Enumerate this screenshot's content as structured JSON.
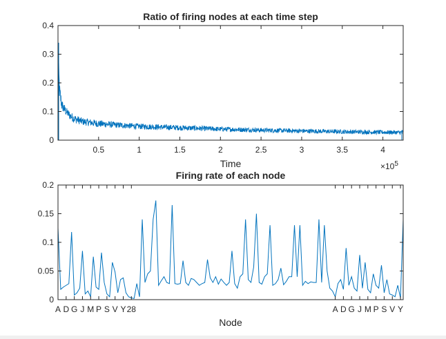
{
  "chart_data": [
    {
      "type": "line",
      "title": "Ratio of firing nodes at each time step",
      "xlabel": "Time",
      "ylabel": "",
      "x_exponent_label": "×10",
      "x_exponent_power": "5",
      "xlim": [
        0,
        4.25
      ],
      "ylim": [
        0,
        0.4
      ],
      "xticks": [
        0.5,
        1,
        1.5,
        2,
        2.5,
        3,
        3.5,
        4
      ],
      "xtick_labels": [
        "0.5",
        "1",
        "1.5",
        "2",
        "2.5",
        "3",
        "3.5",
        "4"
      ],
      "yticks": [
        0,
        0.1,
        0.2,
        0.3,
        0.4
      ],
      "ytick_labels": [
        "0",
        "0.1",
        "0.2",
        "0.3",
        "0.4"
      ],
      "envelope": {
        "x": [
          0.0,
          0.02,
          0.05,
          0.1,
          0.15,
          0.2,
          0.3,
          0.5,
          0.75,
          1.0,
          1.5,
          2.0,
          2.5,
          3.0,
          3.5,
          4.0,
          4.25
        ],
        "mean": [
          0.3,
          0.17,
          0.12,
          0.1,
          0.085,
          0.075,
          0.065,
          0.058,
          0.053,
          0.048,
          0.043,
          0.038,
          0.034,
          0.031,
          0.029,
          0.027,
          0.026
        ],
        "upper": [
          0.33,
          0.2,
          0.14,
          0.115,
          0.1,
          0.09,
          0.078,
          0.07,
          0.063,
          0.058,
          0.053,
          0.047,
          0.043,
          0.04,
          0.037,
          0.035,
          0.034
        ],
        "lower": [
          0.27,
          0.13,
          0.1,
          0.085,
          0.07,
          0.06,
          0.052,
          0.045,
          0.042,
          0.038,
          0.034,
          0.03,
          0.027,
          0.024,
          0.022,
          0.02,
          0.02
        ]
      },
      "color": "#0072bd",
      "grid": false
    },
    {
      "type": "line",
      "title": "Firing rate of each node",
      "xlabel": "Node",
      "ylabel": "",
      "ylim": [
        0,
        0.2
      ],
      "yticks": [
        0,
        0.05,
        0.1,
        0.15,
        0.2
      ],
      "ytick_labels": [
        "0",
        "0.05",
        "0.1",
        "0.15",
        "0.2"
      ],
      "xtick_labels": [
        "A",
        "D",
        "G",
        "J",
        "M",
        "P",
        "S",
        "V",
        "Y",
        "28",
        "A",
        "D",
        "G",
        "J",
        "M",
        "P",
        "S",
        "V",
        "Y"
      ],
      "xtick_positions": [
        1,
        4,
        7,
        10,
        13,
        16,
        19,
        22,
        25,
        28,
        103,
        106,
        109,
        112,
        115,
        118,
        121,
        124,
        127
      ],
      "xlim": [
        1,
        128
      ],
      "values": [
        0.125,
        0.018,
        0.022,
        0.025,
        0.028,
        0.118,
        0.008,
        0.012,
        0.02,
        0.085,
        0.01,
        0.015,
        0.005,
        0.075,
        0.022,
        0.018,
        0.082,
        0.03,
        0.01,
        0.005,
        0.065,
        0.048,
        0.012,
        0.035,
        0.038,
        0.012,
        0.005,
        0.003,
        0.002,
        0.028,
        0.005,
        0.14,
        0.03,
        0.045,
        0.05,
        0.14,
        0.173,
        0.025,
        0.033,
        0.04,
        0.03,
        0.028,
        0.165,
        0.028,
        0.027,
        0.028,
        0.068,
        0.03,
        0.025,
        0.037,
        0.035,
        0.03,
        0.025,
        0.028,
        0.03,
        0.07,
        0.038,
        0.03,
        0.04,
        0.027,
        0.036,
        0.03,
        0.025,
        0.03,
        0.085,
        0.028,
        0.02,
        0.04,
        0.045,
        0.14,
        0.035,
        0.03,
        0.057,
        0.15,
        0.03,
        0.027,
        0.04,
        0.045,
        0.13,
        0.025,
        0.028,
        0.035,
        0.055,
        0.026,
        0.032,
        0.04,
        0.04,
        0.13,
        0.04,
        0.13,
        0.025,
        0.032,
        0.028,
        0.031,
        0.03,
        0.03,
        0.14,
        0.03,
        0.13,
        0.05,
        0.02,
        0.015,
        0.005,
        0.028,
        0.035,
        0.018,
        0.09,
        0.025,
        0.04,
        0.02,
        0.015,
        0.078,
        0.02,
        0.065,
        0.018,
        0.012,
        0.045,
        0.025,
        0.02,
        0.06,
        0.012,
        0.035,
        0.01,
        0.008,
        0.005,
        0.025,
        0.003,
        0.14
      ],
      "color": "#0072bd",
      "grid": false
    }
  ]
}
